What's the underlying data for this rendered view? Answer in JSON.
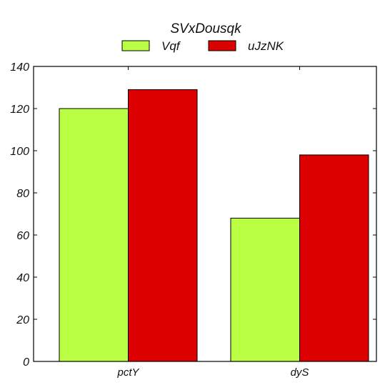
{
  "chart_data": {
    "type": "bar",
    "title": "SVxDousqk",
    "xlabel": "",
    "ylabel": "",
    "categories": [
      "pctY",
      "dyS"
    ],
    "series": [
      {
        "name": "Vqf",
        "values": [
          120,
          68
        ],
        "color": "#bbff44"
      },
      {
        "name": "uJzNK",
        "values": [
          129,
          98
        ],
        "color": "#dd0000"
      }
    ],
    "ylim": [
      0,
      140
    ],
    "yticks": [
      0,
      20,
      40,
      60,
      80,
      100,
      120,
      140
    ],
    "grid": false,
    "legend": "top-center"
  }
}
